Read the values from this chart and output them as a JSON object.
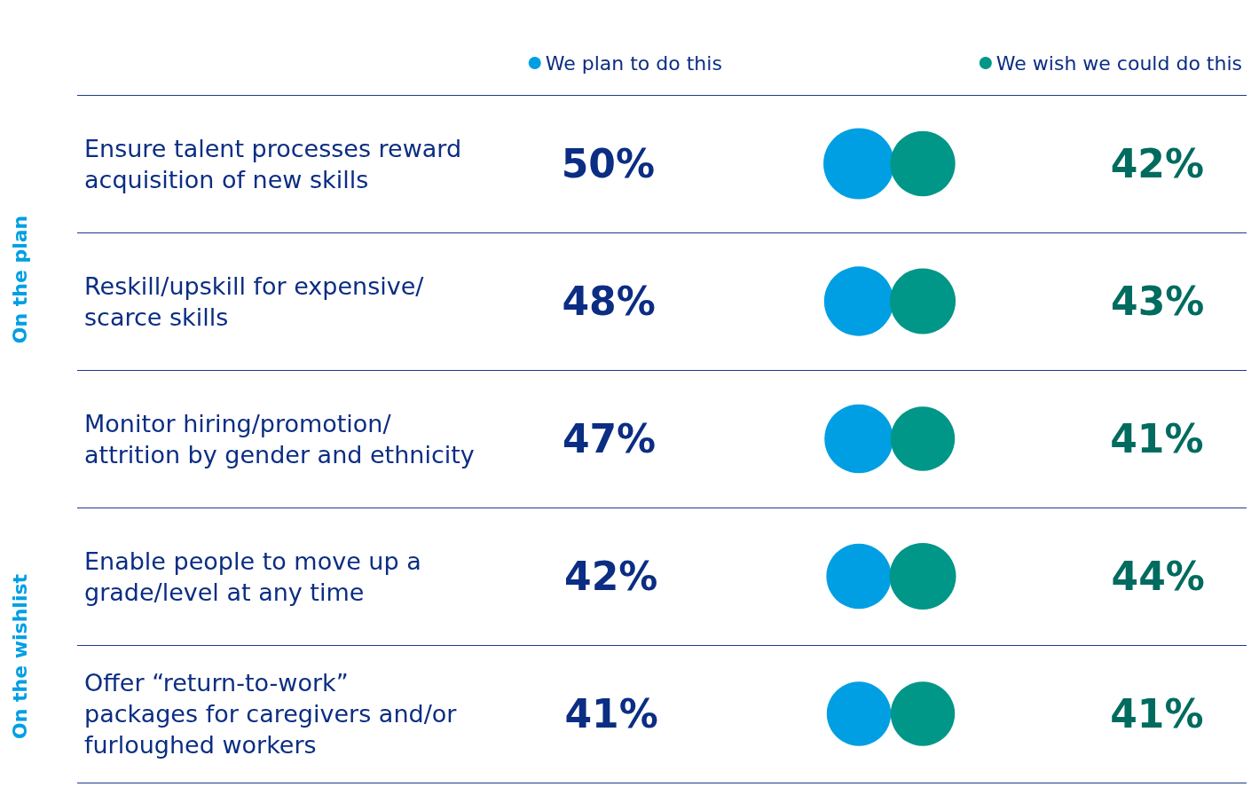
{
  "chart_data": {
    "type": "other",
    "categories": [
      "Ensure talent processes reward acquisition of new skills",
      "Reskill/upskill for expensive/scarce skills",
      "Monitor hiring/promotion/ attrition by gender and ethnicity",
      "Enable people to move up a grade/level at any time",
      "Offer “return-to-work” packages for caregivers and/or furloughed workers"
    ],
    "series": [
      {
        "name": "We plan to do this",
        "color": "#009fe3",
        "values": [
          50,
          48,
          47,
          42,
          41
        ],
        "value_labels": [
          "50%",
          "48%",
          "47%",
          "42%",
          "41%"
        ]
      },
      {
        "name": "We wish we could do this",
        "color": "#009688",
        "values": [
          42,
          43,
          41,
          44,
          41
        ],
        "value_labels": [
          "42%",
          "43%",
          "41%",
          "44%",
          "41%"
        ]
      }
    ],
    "annotations": [
      "On the plan",
      "On the wishlist"
    ],
    "legend": "top right"
  }
}
